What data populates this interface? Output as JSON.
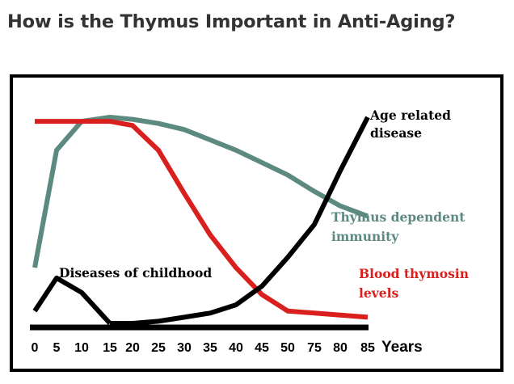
{
  "page": {
    "title": "How is the Thymus Important in Anti-Aging?"
  },
  "chart_data": {
    "type": "line",
    "title": "",
    "xlabel": "Years",
    "ylabel": "",
    "x_ticks": [
      0,
      5,
      10,
      15,
      20,
      25,
      30,
      35,
      40,
      45,
      50,
      75,
      80,
      85
    ],
    "ylim": [
      0,
      100
    ],
    "grid": false,
    "legend": "none",
    "series": [
      {
        "name": "Thymus dependent immunity",
        "color": "#5d8a80",
        "x": [
          0,
          5,
          10,
          15,
          20,
          25,
          30,
          35,
          40,
          45,
          50,
          75,
          80,
          85
        ],
        "y": [
          27,
          84,
          98,
          100,
          99,
          97,
          94,
          89,
          84,
          78,
          72,
          64,
          57,
          52
        ]
      },
      {
        "name": "Blood thymosin levels",
        "color": "#d9201e",
        "x": [
          0,
          5,
          10,
          15,
          20,
          25,
          30,
          35,
          40,
          45,
          50,
          75,
          80,
          85
        ],
        "y": [
          98,
          98,
          98,
          98,
          96,
          84,
          63,
          43,
          27,
          14,
          6,
          5,
          4,
          3
        ]
      },
      {
        "name": "Diseases of childhood",
        "color": "#000000",
        "x": [
          0,
          5,
          10,
          15
        ],
        "y": [
          6,
          22,
          15,
          0
        ]
      },
      {
        "name": "Age related disease",
        "color": "#000000",
        "x": [
          15,
          20,
          25,
          30,
          35,
          40,
          45,
          50,
          75,
          80,
          85
        ],
        "y": [
          0,
          0,
          1,
          3,
          5,
          9,
          18,
          32,
          48,
          74,
          100
        ]
      }
    ],
    "annotations": [
      {
        "text": "Age related",
        "series": "Age related disease"
      },
      {
        "text": "disease",
        "series": "Age related disease"
      },
      {
        "text": "Thymus dependent",
        "series": "Thymus dependent immunity"
      },
      {
        "text": "immunity",
        "series": "Thymus dependent immunity"
      },
      {
        "text": "Blood thymosin",
        "series": "Blood thymosin levels"
      },
      {
        "text": "levels",
        "series": "Blood thymosin levels"
      },
      {
        "text": "Diseases of childhood",
        "series": "Diseases of childhood"
      }
    ]
  }
}
